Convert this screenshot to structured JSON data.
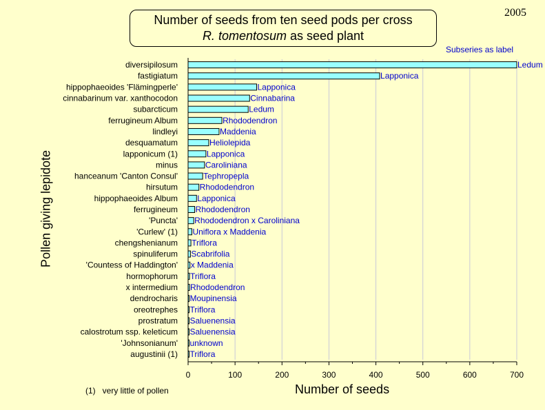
{
  "header": {
    "title_line1": "Number of seeds from ten seed pods per cross",
    "title_line2_italic": "R. tomentosum",
    "title_line2_rest": " as seed plant",
    "year": "2005",
    "subseries_note": "Subseries as label"
  },
  "footnote": "(1)   very little of pollen",
  "colors": {
    "background": "#ffffcc",
    "bar_fill": "#99ffff",
    "label_text": "#0000cc",
    "grid": "#c8c8d8"
  },
  "chart_data": {
    "type": "bar",
    "orientation": "horizontal",
    "xlabel": "Number of seeds",
    "ylabel": "Pollen giving lepidote",
    "xlim": [
      0,
      700
    ],
    "xticks": [
      0,
      100,
      200,
      300,
      400,
      500,
      600,
      700
    ],
    "grid": true,
    "categories": [
      "diversipilosum",
      "fastigiatum",
      "hippophaeoides 'Flämingperle'",
      "cinnabarinum var. xanthocodon",
      "subarcticum",
      "ferrugineum Album",
      "lindleyi",
      "desquamatum",
      "lapponicum (1)",
      "minus",
      "hanceanum 'Canton Consul'",
      "hirsutum",
      "hippophaeoides Album",
      "ferrugineum",
      "'Puncta'",
      "'Curlew' (1)",
      "chengshenianum",
      "spinuliferum",
      "'Countess of Haddington'",
      "hormophorum",
      "x intermedium",
      "dendrocharis",
      "oreotrephes",
      "prostratum",
      "calostrotum ssp. keleticum",
      "'Johnsonianum'",
      "augustinii (1)"
    ],
    "values": [
      700,
      408,
      146,
      131,
      128,
      72,
      66,
      44,
      38,
      35,
      31,
      23,
      18,
      14,
      12,
      8,
      6,
      5,
      4,
      3,
      3,
      2,
      2,
      1,
      1,
      1,
      1
    ],
    "bar_labels": [
      "Ledum",
      "Lapponica",
      "Lapponica",
      "Cinnabarina",
      "Ledum",
      "Rhododendron",
      "Maddenia",
      "Heliolepida",
      "Lapponica",
      "Caroliniana",
      "Tephropepla",
      "Rhododendron",
      "Lapponica",
      "Rhododendron",
      "Rhododendron x Caroliniana",
      "Uniflora x Maddenia",
      "Triflora",
      "Scabrifolia",
      "x Maddenia",
      "Triflora",
      "Rhododendron",
      "Moupinensia",
      "Triflora",
      "Saluenensia",
      "Saluenensia",
      "unknown",
      "Triflora"
    ]
  }
}
